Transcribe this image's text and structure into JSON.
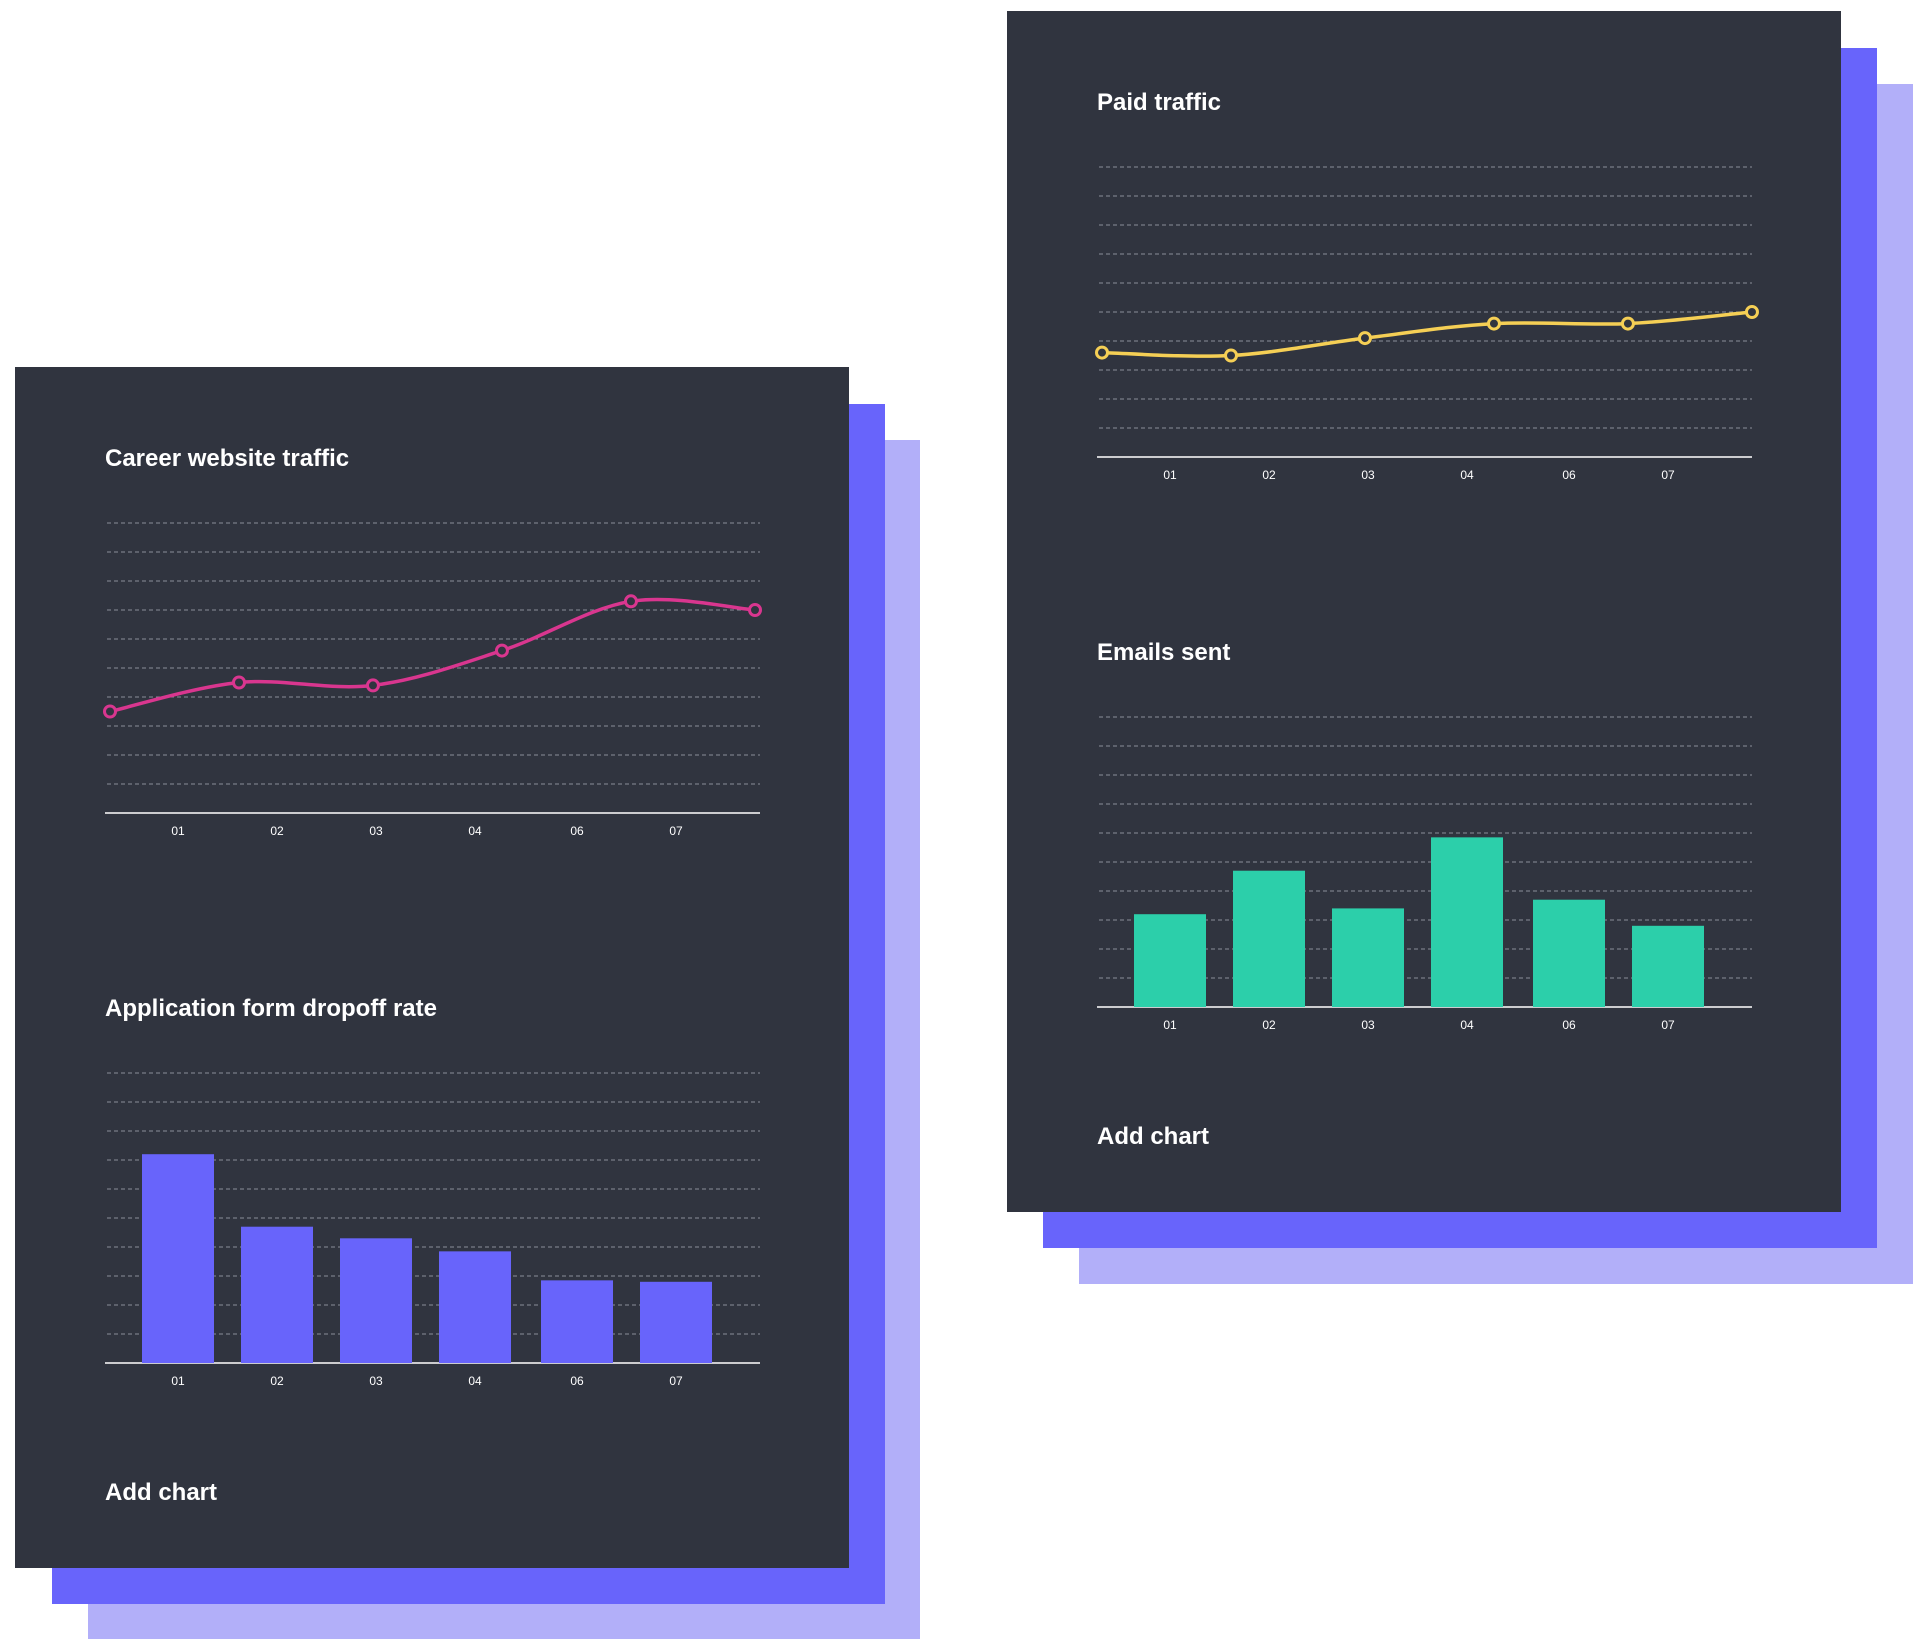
{
  "colors": {
    "card_bg": "#30343f",
    "shadow_dark": "#6864fb",
    "shadow_light": "#b2aff9",
    "grid": "#8a8e98",
    "axis": "#ffffff",
    "career_line": "#d9368f",
    "paid_line": "#f5cf55",
    "emails_bar": "#2ccfaa",
    "dropoff_bar": "#6864fb"
  },
  "left_card": {
    "add_chart_label": "Add chart"
  },
  "right_card": {
    "add_chart_label": "Add chart"
  },
  "chart_data": [
    {
      "id": "career",
      "type": "line",
      "title": "Career website traffic",
      "categories": [
        "01",
        "02",
        "03",
        "04",
        "06",
        "07"
      ],
      "x": [
        0,
        1.3,
        2.65,
        3.95,
        5.25,
        6.5
      ],
      "values": [
        3.5,
        4.5,
        4.4,
        5.6,
        7.3,
        7.0
      ],
      "ylim": [
        0,
        10
      ],
      "grid": true,
      "color": "#d9368f"
    },
    {
      "id": "dropoff",
      "type": "bar",
      "title": "Application form dropoff rate",
      "categories": [
        "01",
        "02",
        "03",
        "04",
        "06",
        "07"
      ],
      "values": [
        7.2,
        4.7,
        4.3,
        3.85,
        2.85,
        2.8
      ],
      "ylim": [
        0,
        10
      ],
      "grid": true,
      "color": "#6864fb"
    },
    {
      "id": "paid",
      "type": "line",
      "title": "Paid traffic",
      "categories": [
        "01",
        "02",
        "03",
        "04",
        "06",
        "07"
      ],
      "x": [
        0,
        1.3,
        2.65,
        3.95,
        5.3,
        6.55
      ],
      "values": [
        3.6,
        3.5,
        4.1,
        4.6,
        4.6,
        5.0
      ],
      "ylim": [
        0,
        10
      ],
      "grid": true,
      "color": "#f5cf55"
    },
    {
      "id": "emails",
      "type": "bar",
      "title": "Emails sent",
      "categories": [
        "01",
        "02",
        "03",
        "04",
        "06",
        "07"
      ],
      "values": [
        3.2,
        4.7,
        3.4,
        5.85,
        3.7,
        2.8
      ],
      "ylim": [
        0,
        10
      ],
      "grid": true,
      "color": "#2ccfaa"
    }
  ]
}
